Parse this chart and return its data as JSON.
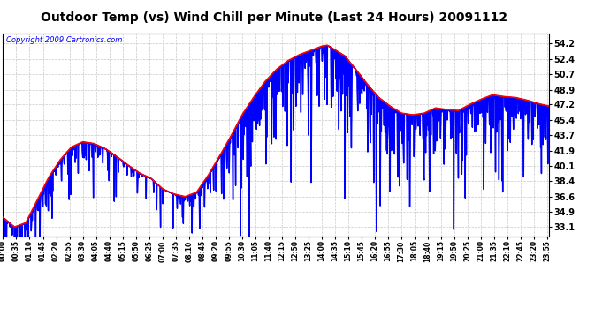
{
  "title": "Outdoor Temp (vs) Wind Chill per Minute (Last 24 Hours) 20091112",
  "copyright": "Copyright 2009 Cartronics.com",
  "yticks": [
    33.1,
    34.9,
    36.6,
    38.4,
    40.1,
    41.9,
    43.7,
    45.4,
    47.2,
    48.9,
    50.7,
    52.4,
    54.2
  ],
  "ylim": [
    32.0,
    55.4
  ],
  "bg_color": "#ffffff",
  "grid_color": "#c8c8c8",
  "line_temp_color": "#ff0000",
  "line_wc_color": "#0000ff",
  "num_minutes": 1440,
  "temp_keypoints_t": [
    0,
    30,
    60,
    90,
    120,
    150,
    180,
    210,
    240,
    270,
    300,
    330,
    360,
    390,
    420,
    450,
    480,
    510,
    540,
    570,
    600,
    630,
    660,
    690,
    720,
    750,
    780,
    810,
    840,
    855,
    870,
    900,
    930,
    960,
    990,
    1020,
    1050,
    1080,
    1110,
    1140,
    1170,
    1200,
    1230,
    1260,
    1290,
    1320,
    1350,
    1380,
    1410,
    1440
  ],
  "temp_keypoints_v": [
    34.2,
    33.1,
    33.6,
    36.2,
    38.8,
    40.8,
    42.3,
    42.9,
    42.7,
    42.1,
    41.2,
    40.2,
    39.3,
    38.7,
    37.5,
    36.9,
    36.6,
    37.1,
    39.0,
    41.2,
    43.5,
    46.0,
    48.0,
    49.8,
    51.2,
    52.2,
    52.9,
    53.4,
    53.9,
    54.0,
    53.6,
    52.8,
    51.2,
    49.5,
    48.0,
    47.0,
    46.2,
    46.0,
    46.2,
    46.8,
    46.6,
    46.5,
    47.2,
    47.8,
    48.3,
    48.1,
    48.0,
    47.7,
    47.3,
    47.0
  ],
  "title_fontsize": 10,
  "copyright_fontsize": 6,
  "ytick_fontsize": 7,
  "xtick_fontsize": 5.5,
  "tick_interval_min": 35
}
